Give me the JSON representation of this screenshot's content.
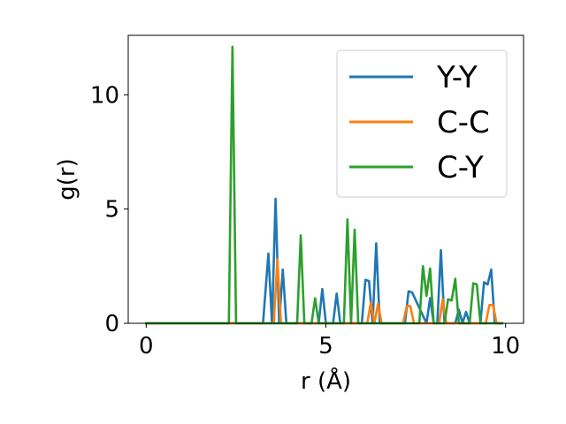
{
  "chart_data": {
    "type": "line",
    "title": "",
    "xlabel": "r (Å)",
    "ylabel": "g(r)",
    "xlim": [
      -0.5,
      10.5
    ],
    "ylim": [
      0,
      12.6
    ],
    "xticks": [
      0,
      5,
      10
    ],
    "yticks": [
      0,
      5,
      10
    ],
    "xtick_labels": [
      "0",
      "5",
      "10"
    ],
    "ytick_labels": [
      "0",
      "5",
      "10"
    ],
    "grid": false,
    "legend": "top-right",
    "series": [
      {
        "name": "Y-Y",
        "color": "#1f77b4",
        "x": [
          0,
          3.25,
          3.4,
          3.5,
          3.6,
          3.7,
          3.8,
          3.9,
          4.0,
          4.7,
          4.8,
          4.9,
          5.0,
          5.2,
          5.3,
          5.4,
          6.0,
          6.1,
          6.2,
          6.3,
          6.4,
          6.5,
          7.2,
          7.3,
          7.4,
          7.8,
          7.9,
          8.0,
          8.1,
          8.2,
          8.3,
          8.4,
          8.6,
          8.7,
          8.8,
          8.9,
          9.0,
          9.1,
          9.3,
          9.4,
          9.5,
          9.6,
          9.7,
          9.9
        ],
        "y": [
          0,
          0,
          3.05,
          0,
          5.45,
          0,
          2.35,
          0,
          0,
          0,
          0,
          1.5,
          0,
          0,
          1.3,
          0,
          0,
          1.9,
          1.85,
          0,
          3.5,
          0,
          0,
          1.4,
          1.35,
          0,
          1.1,
          0,
          0,
          3.2,
          0,
          0,
          0,
          0.6,
          0,
          0.5,
          0,
          0,
          0,
          1.8,
          1.7,
          2.35,
          0,
          0
        ]
      },
      {
        "name": "C-C",
        "color": "#ff7f0e",
        "x": [
          0,
          3.45,
          3.55,
          3.65,
          3.75,
          6.05,
          6.15,
          6.25,
          6.35,
          6.45,
          6.55,
          7.15,
          7.25,
          7.35,
          7.45,
          8.15,
          8.25,
          8.35,
          9.45,
          9.55,
          9.65,
          9.75,
          9.9
        ],
        "y": [
          0,
          0,
          0,
          2.8,
          0,
          0,
          0,
          0.9,
          0,
          0.85,
          0,
          0,
          0.75,
          0.75,
          0,
          0,
          1.05,
          0,
          0,
          0.8,
          0.8,
          0,
          0
        ]
      },
      {
        "name": "C-Y",
        "color": "#2ca02c",
        "x": [
          0,
          2.3,
          2.4,
          2.5,
          4.2,
          4.3,
          4.4,
          4.6,
          4.7,
          4.8,
          5.5,
          5.6,
          5.7,
          5.8,
          5.9,
          6.0,
          7.6,
          7.7,
          7.8,
          7.9,
          8.0,
          8.3,
          8.4,
          8.5,
          8.6,
          8.7,
          9.0,
          9.1,
          9.2,
          9.3,
          9.9
        ],
        "y": [
          0,
          0,
          12.1,
          0,
          0,
          3.85,
          0,
          0,
          1.1,
          0,
          0,
          4.55,
          0,
          4.1,
          0,
          0,
          0,
          2.5,
          1.2,
          2.4,
          0,
          0,
          1.05,
          1.0,
          1.95,
          0,
          0,
          1.75,
          1.7,
          0,
          0
        ]
      }
    ]
  }
}
